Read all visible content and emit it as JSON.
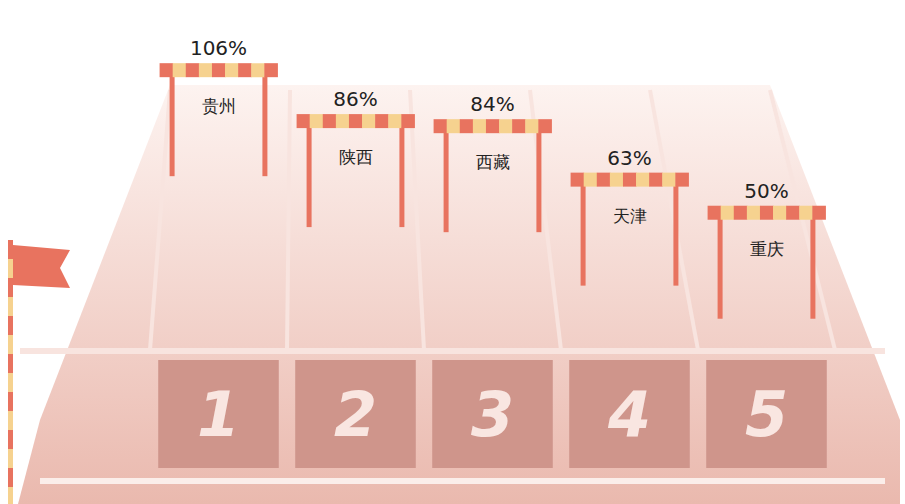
{
  "chart_data": {
    "type": "bar",
    "categories": [
      "贵州",
      "陕西",
      "西藏",
      "天津",
      "重庆"
    ],
    "values": [
      106,
      86,
      84,
      63,
      50
    ],
    "value_labels": [
      "106%",
      "86%",
      "84%",
      "63%",
      "50%"
    ],
    "ranks": [
      1,
      2,
      3,
      4,
      5
    ],
    "ylim": [
      0,
      110
    ],
    "color": "#e8735f",
    "data_labels": true,
    "tick_labels": false,
    "grid": false
  }
}
